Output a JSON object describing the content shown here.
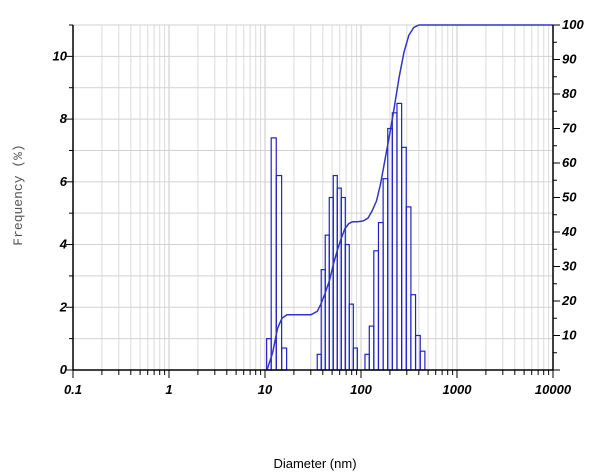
{
  "chart_data": {
    "type": "bar",
    "title": "",
    "xlabel": "Diameter (nm)",
    "ylabel": "Frequency (%)",
    "y2label": "",
    "x_scale": "log",
    "xlim": [
      0.1,
      10000
    ],
    "ylim": [
      0,
      11
    ],
    "y2lim": [
      0,
      100
    ],
    "grid": true,
    "x_ticks": [
      {
        "value": 0.1,
        "label": "0.1"
      },
      {
        "value": 1,
        "label": "1"
      },
      {
        "value": 10,
        "label": "10"
      },
      {
        "value": 100,
        "label": "100"
      },
      {
        "value": 1000,
        "label": "1000"
      },
      {
        "value": 10000,
        "label": "10000"
      }
    ],
    "y_ticks": [
      {
        "value": 0,
        "label": "0"
      },
      {
        "value": 2,
        "label": "2"
      },
      {
        "value": 4,
        "label": "4"
      },
      {
        "value": 6,
        "label": "6"
      },
      {
        "value": 8,
        "label": "8"
      },
      {
        "value": 10,
        "label": "10"
      }
    ],
    "y2_ticks": [
      {
        "value": 10,
        "label": "10"
      },
      {
        "value": 20,
        "label": "20"
      },
      {
        "value": 30,
        "label": "30"
      },
      {
        "value": 40,
        "label": "40"
      },
      {
        "value": 50,
        "label": "50"
      },
      {
        "value": 60,
        "label": "60"
      },
      {
        "value": 70,
        "label": "70"
      },
      {
        "value": 80,
        "label": "80"
      },
      {
        "value": 90,
        "label": "90"
      },
      {
        "value": 100,
        "label": "100"
      }
    ],
    "series": [
      {
        "type": "bar",
        "bins": [
          [
            10.4,
            11.6,
            1.0
          ],
          [
            11.6,
            13.1,
            7.4
          ],
          [
            13.1,
            14.9,
            6.2
          ],
          [
            14.9,
            16.8,
            0.7
          ],
          [
            35.0,
            38.5,
            0.5
          ],
          [
            38.5,
            42.4,
            3.2
          ],
          [
            42.4,
            46.7,
            4.3
          ],
          [
            46.7,
            51.4,
            5.5
          ],
          [
            51.4,
            56.6,
            6.2
          ],
          [
            56.6,
            62.3,
            5.8
          ],
          [
            62.3,
            68.6,
            5.5
          ],
          [
            68.6,
            75.5,
            4.0
          ],
          [
            75.5,
            83.2,
            2.1
          ],
          [
            83.2,
            91.6,
            0.7
          ],
          [
            110.0,
            122.0,
            0.5
          ],
          [
            122.0,
            136.0,
            1.4
          ],
          [
            136.0,
            152.0,
            3.8
          ],
          [
            152.0,
            170.0,
            4.7
          ],
          [
            170.0,
            190.0,
            6.1
          ],
          [
            190.0,
            212.0,
            7.7
          ],
          [
            212.0,
            237.0,
            8.2
          ],
          [
            237.0,
            265.0,
            8.5
          ],
          [
            265.0,
            296.0,
            7.1
          ],
          [
            296.0,
            331.0,
            5.2
          ],
          [
            331.0,
            370.0,
            2.4
          ],
          [
            370.0,
            414.0,
            1.1
          ],
          [
            414.0,
            463.0,
            0.6
          ]
        ]
      },
      {
        "type": "line",
        "axis": "right",
        "x": [
          10.5,
          12.0,
          13.5,
          15.0,
          17.0,
          22.0,
          30.0,
          35.0,
          38.0,
          42.0,
          47.0,
          52.0,
          57.0,
          62.0,
          68.0,
          75.0,
          82.0,
          92.0,
          105.0,
          118.0,
          130.0,
          145.0,
          160.0,
          178.0,
          198.0,
          222.0,
          250.0,
          280.0,
          315.0,
          355.0,
          400.0,
          450.0,
          500.0,
          1000.0,
          10000.0
        ],
        "y": [
          0.0,
          5.0,
          12.0,
          15.0,
          16.0,
          16.0,
          16.0,
          17.0,
          19.0,
          22.0,
          26.0,
          31.0,
          35.0,
          38.0,
          41.0,
          42.5,
          43.0,
          43.0,
          43.2,
          44.0,
          46.0,
          49.0,
          54.0,
          61.0,
          68.0,
          76.0,
          85.0,
          92.0,
          97.0,
          99.3,
          100.0,
          100.0,
          100.0,
          100.0,
          100.0
        ]
      }
    ]
  }
}
